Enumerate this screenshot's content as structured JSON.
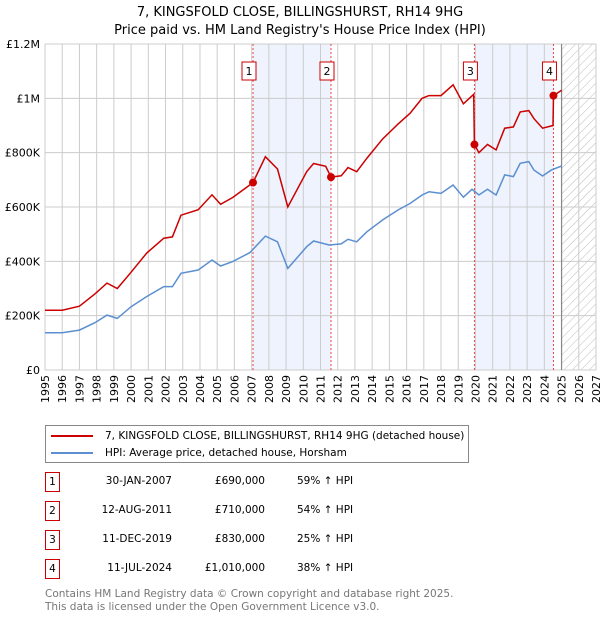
{
  "title_line1": "7, KINGSFOLD CLOSE, BILLINGSHURST, RH14 9HG",
  "title_line2": "Price paid vs. HM Land Registry's House Price Index (HPI)",
  "colors": {
    "property": "#cc0000",
    "hpi": "#5b8fd0",
    "shade": "#eef3fd"
  },
  "chart_data": {
    "type": "line",
    "ylim": [
      0,
      1200000
    ],
    "xlim": [
      1995,
      2027
    ],
    "yticks": [
      {
        "v": 0,
        "label": "£0"
      },
      {
        "v": 200000,
        "label": "£200K"
      },
      {
        "v": 400000,
        "label": "£400K"
      },
      {
        "v": 600000,
        "label": "£600K"
      },
      {
        "v": 800000,
        "label": "£800K"
      },
      {
        "v": 1000000,
        "label": "£1M"
      },
      {
        "v": 1200000,
        "label": "£1.2M"
      }
    ],
    "xticks": [
      "1995",
      "1996",
      "1997",
      "1998",
      "1999",
      "2000",
      "2001",
      "2002",
      "2003",
      "2004",
      "2005",
      "2006",
      "2007",
      "2008",
      "2009",
      "2010",
      "2011",
      "2012",
      "2013",
      "2014",
      "2015",
      "2016",
      "2017",
      "2018",
      "2019",
      "2020",
      "2021",
      "2022",
      "2023",
      "2024",
      "2025",
      "2026",
      "2027"
    ],
    "forecast_from": 2025,
    "series": [
      {
        "name": "7, KINGSFOLD CLOSE, BILLINGSHURST, RH14 9HG (detached house)",
        "key": "property",
        "x": [
          1995.0,
          1996.0,
          1997.0,
          1997.9,
          1998.6,
          1999.2,
          2000.0,
          2000.9,
          2001.9,
          2002.4,
          2002.9,
          2003.9,
          2004.7,
          2005.2,
          2005.9,
          2007.08,
          2007.8,
          2008.5,
          2009.1,
          2010.2,
          2010.6,
          2011.3,
          2011.61,
          2012.2,
          2012.6,
          2013.1,
          2013.7,
          2014.6,
          2015.5,
          2016.2,
          2016.9,
          2017.3,
          2018.0,
          2018.7,
          2019.3,
          2019.9,
          2019.94,
          2020.2,
          2020.7,
          2021.2,
          2021.7,
          2022.2,
          2022.6,
          2023.1,
          2023.4,
          2023.9,
          2024.5,
          2024.53,
          2025.0
        ],
        "y": [
          220000,
          220000,
          235000,
          280000,
          320000,
          300000,
          360000,
          430000,
          485000,
          490000,
          570000,
          590000,
          645000,
          610000,
          635000,
          690000,
          785000,
          740000,
          600000,
          730000,
          760000,
          750000,
          710000,
          715000,
          745000,
          730000,
          780000,
          850000,
          905000,
          945000,
          1000000,
          1010000,
          1010000,
          1050000,
          980000,
          1015000,
          830000,
          800000,
          830000,
          810000,
          890000,
          895000,
          950000,
          955000,
          925000,
          890000,
          900000,
          1010000,
          1030000
        ]
      },
      {
        "name": "HPI: Average price, detached house, Horsham",
        "key": "hpi",
        "x": [
          1995.0,
          1996.0,
          1997.0,
          1997.9,
          1998.6,
          1999.2,
          2000.0,
          2000.9,
          2001.9,
          2002.4,
          2002.9,
          2003.9,
          2004.7,
          2005.2,
          2005.9,
          2006.9,
          2007.8,
          2008.5,
          2009.1,
          2010.2,
          2010.6,
          2011.5,
          2012.2,
          2012.6,
          2013.1,
          2013.7,
          2014.6,
          2015.5,
          2016.2,
          2016.9,
          2017.3,
          2018.0,
          2018.7,
          2019.3,
          2019.8,
          2020.2,
          2020.7,
          2021.2,
          2021.7,
          2022.2,
          2022.6,
          2023.1,
          2023.4,
          2023.9,
          2024.4,
          2025.0
        ],
        "y": [
          137000,
          137000,
          147000,
          174000,
          202000,
          190000,
          233000,
          270000,
          307000,
          307000,
          356000,
          368000,
          405000,
          383000,
          399000,
          432000,
          493000,
          472000,
          374000,
          454000,
          475000,
          460000,
          464000,
          481000,
          472000,
          509000,
          552000,
          589000,
          613000,
          644000,
          656000,
          650000,
          681000,
          636000,
          665000,
          644000,
          665000,
          644000,
          718000,
          712000,
          761000,
          767000,
          736000,
          714000,
          736000,
          751000
        ]
      }
    ],
    "sales": [
      {
        "id": "1",
        "date": "30-JAN-2007",
        "x": 2007.08,
        "price": 690000,
        "price_label": "£690,000",
        "hpi": "59% ↑ HPI"
      },
      {
        "id": "2",
        "date": "12-AUG-2011",
        "x": 2011.61,
        "price": 710000,
        "price_label": "£710,000",
        "hpi": "54% ↑ HPI"
      },
      {
        "id": "3",
        "date": "11-DEC-2019",
        "x": 2019.94,
        "price": 830000,
        "price_label": "£830,000",
        "hpi": "25% ↑ HPI"
      },
      {
        "id": "4",
        "date": "11-JUL-2024",
        "x": 2024.53,
        "price": 1010000,
        "price_label": "£1,010,000",
        "hpi": "38% ↑ HPI"
      }
    ],
    "shaded": [
      [
        2007.08,
        2011.61
      ],
      [
        2019.94,
        2024.53
      ]
    ]
  },
  "legend": {
    "property": "7, KINGSFOLD CLOSE, BILLINGSHURST, RH14 9HG (detached house)",
    "hpi": "HPI: Average price, detached house, Horsham"
  },
  "footer_line1": "Contains HM Land Registry data © Crown copyright and database right 2025.",
  "footer_line2": "This data is licensed under the Open Government Licence v3.0."
}
